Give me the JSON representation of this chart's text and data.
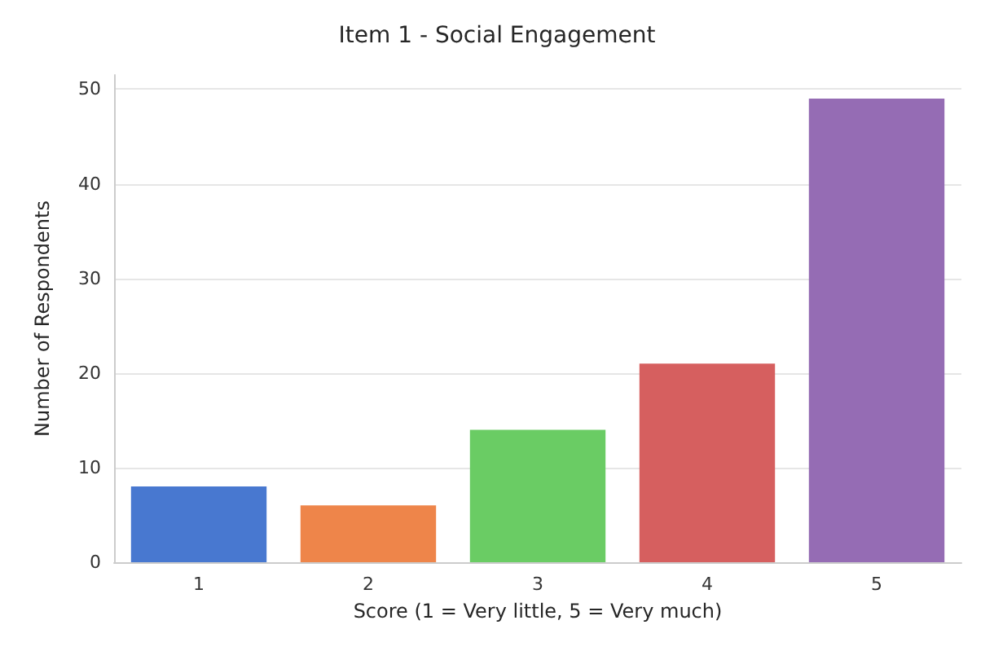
{
  "chart_data": {
    "type": "bar",
    "title": "Item 1 - Social Engagement",
    "xlabel": "Score (1 = Very little, 5 = Very much)",
    "ylabel": "Number of Respondents",
    "categories": [
      "1",
      "2",
      "3",
      "4",
      "5"
    ],
    "values": [
      8,
      6,
      14,
      21,
      49
    ],
    "colors": [
      "#4878d0",
      "#ee854a",
      "#6acc64",
      "#d65f5f",
      "#956cb4"
    ],
    "ylim": [
      0,
      51.5
    ],
    "yticks": [
      0,
      10,
      20,
      30,
      40,
      50
    ],
    "grid": "y"
  }
}
